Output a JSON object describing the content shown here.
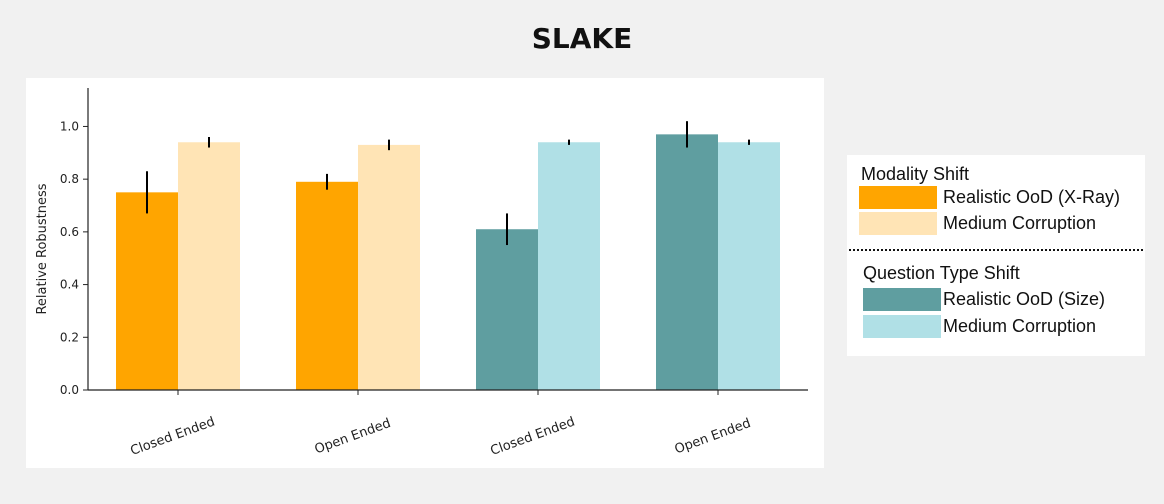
{
  "title": "SLAKE",
  "chart_data": {
    "type": "bar",
    "title": "SLAKE",
    "ylabel": "Relative Robustness",
    "xlabel": "",
    "ylim": [
      0.0,
      1.07
    ],
    "yticks": [
      "0.0",
      "0.2",
      "0.4",
      "0.6",
      "0.8",
      "1.0"
    ],
    "grid": false,
    "legend_position": "right",
    "groups": [
      {
        "category": "Closed Ended",
        "bars": [
          {
            "series": "Realistic OoD (X-Ray)",
            "value": 0.75,
            "err": 0.08,
            "color": "#ffa500"
          },
          {
            "series": "Medium Corruption",
            "value": 0.94,
            "err": 0.02,
            "color": "#ffe4b5"
          }
        ]
      },
      {
        "category": "Open Ended",
        "bars": [
          {
            "series": "Realistic OoD (X-Ray)",
            "value": 0.79,
            "err": 0.03,
            "color": "#ffa500"
          },
          {
            "series": "Medium Corruption",
            "value": 0.93,
            "err": 0.02,
            "color": "#ffe4b5"
          }
        ]
      },
      {
        "category": "Closed Ended",
        "bars": [
          {
            "series": "Realistic OoD (Size)",
            "value": 0.61,
            "err": 0.06,
            "color": "#5f9ea0"
          },
          {
            "series": "Medium Corruption",
            "value": 0.94,
            "err": 0.01,
            "color": "#b0e0e6"
          }
        ]
      },
      {
        "category": "Open Ended",
        "bars": [
          {
            "series": "Realistic OoD (Size)",
            "value": 0.97,
            "err": 0.05,
            "color": "#5f9ea0"
          },
          {
            "series": "Medium Corruption",
            "value": 0.94,
            "err": 0.01,
            "color": "#b0e0e6"
          }
        ]
      }
    ]
  },
  "legend": {
    "sections": [
      {
        "title": "Modality Shift",
        "items": [
          {
            "label": "Realistic OoD (X-Ray)",
            "color": "#ffa500"
          },
          {
            "label": "Medium Corruption",
            "color": "#ffe4b5"
          }
        ]
      },
      {
        "title": "Question Type Shift",
        "items": [
          {
            "label": "Realistic OoD (Size)",
            "color": "#5f9ea0"
          },
          {
            "label": "Medium Corruption",
            "color": "#b0e0e6"
          }
        ]
      }
    ]
  }
}
